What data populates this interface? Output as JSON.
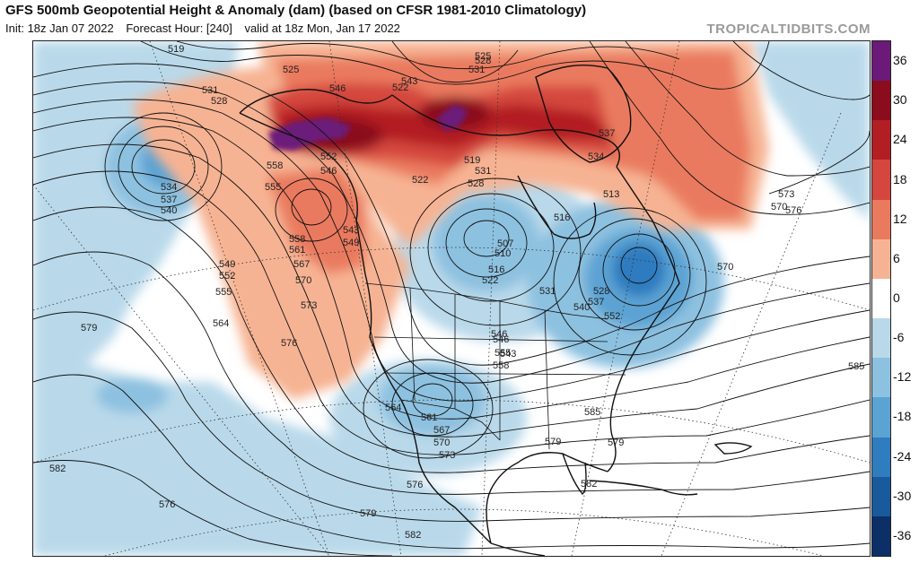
{
  "header": {
    "title": "GFS 500mb Geopotential Height & Anomaly (dam) (based on CFSR 1981-2010 Climatology)",
    "init": "Init: 18z Jan 07 2022",
    "forecast_hour": "Forecast Hour: [240]",
    "valid": "valid at 18z Mon, Jan 17 2022",
    "credit": "TROPICALTIDBITS.COM"
  },
  "colorbar": {
    "levels": [
      {
        "label": "36",
        "value": 36,
        "color": "#6c1a7a"
      },
      {
        "label": "30",
        "value": 30,
        "color": "#8b0c1c"
      },
      {
        "label": "24",
        "value": 24,
        "color": "#b21e24"
      },
      {
        "label": "18",
        "value": 18,
        "color": "#d4463e"
      },
      {
        "label": "12",
        "value": 12,
        "color": "#ea7a5e"
      },
      {
        "label": "6",
        "value": 6,
        "color": "#f6b393"
      },
      {
        "label": "0",
        "value": 0,
        "color": "#ffffff"
      },
      {
        "label": "-6",
        "value": -6,
        "color": "#b9d9ea"
      },
      {
        "label": "-12",
        "value": -12,
        "color": "#8dc1e0"
      },
      {
        "label": "-18",
        "value": -18,
        "color": "#5ba3d3"
      },
      {
        "label": "-24",
        "value": -24,
        "color": "#2f7cbf"
      },
      {
        "label": "-30",
        "value": -30,
        "color": "#195a9c"
      },
      {
        "label": "-36",
        "value": -36,
        "color": "#0c2f67"
      }
    ]
  },
  "contour_labels": [
    {
      "text": "519",
      "value": 519
    },
    {
      "text": "525",
      "value": 525
    },
    {
      "text": "528",
      "value": 528
    },
    {
      "text": "531",
      "value": 531
    },
    {
      "text": "546",
      "value": 546
    },
    {
      "text": "522",
      "value": 522
    },
    {
      "text": "543",
      "value": 543
    },
    {
      "text": "525",
      "value": 525
    },
    {
      "text": "531",
      "value": 531
    },
    {
      "text": "528",
      "value": 528
    },
    {
      "text": "537",
      "value": 537
    },
    {
      "text": "558",
      "value": 558
    },
    {
      "text": "552",
      "value": 552
    },
    {
      "text": "546",
      "value": 546
    },
    {
      "text": "555",
      "value": 555
    },
    {
      "text": "534",
      "value": 534
    },
    {
      "text": "537",
      "value": 537
    },
    {
      "text": "540",
      "value": 540
    },
    {
      "text": "543",
      "value": 543
    },
    {
      "text": "549",
      "value": 549
    },
    {
      "text": "519",
      "value": 519
    },
    {
      "text": "531",
      "value": 531
    },
    {
      "text": "528",
      "value": 528
    },
    {
      "text": "522",
      "value": 522
    },
    {
      "text": "534",
      "value": 534
    },
    {
      "text": "513",
      "value": 513
    },
    {
      "text": "516",
      "value": 516
    },
    {
      "text": "507",
      "value": 507
    },
    {
      "text": "510",
      "value": 510
    },
    {
      "text": "516",
      "value": 516
    },
    {
      "text": "522",
      "value": 522
    },
    {
      "text": "546",
      "value": 546
    },
    {
      "text": "549",
      "value": 549
    },
    {
      "text": "552",
      "value": 552
    },
    {
      "text": "555",
      "value": 555
    },
    {
      "text": "558",
      "value": 558
    },
    {
      "text": "561",
      "value": 561
    },
    {
      "text": "567",
      "value": 567
    },
    {
      "text": "570",
      "value": 570
    },
    {
      "text": "573",
      "value": 573
    },
    {
      "text": "564",
      "value": 564
    },
    {
      "text": "579",
      "value": 579
    },
    {
      "text": "576",
      "value": 576
    },
    {
      "text": "531",
      "value": 531
    },
    {
      "text": "528",
      "value": 528
    },
    {
      "text": "537",
      "value": 537
    },
    {
      "text": "540",
      "value": 540
    },
    {
      "text": "543",
      "value": 543
    },
    {
      "text": "552",
      "value": 552
    },
    {
      "text": "546",
      "value": 546
    },
    {
      "text": "555",
      "value": 555
    },
    {
      "text": "558",
      "value": 558
    },
    {
      "text": "570",
      "value": 570
    },
    {
      "text": "573",
      "value": 573
    },
    {
      "text": "576",
      "value": 576
    },
    {
      "text": "570",
      "value": 570
    },
    {
      "text": "585",
      "value": 585
    },
    {
      "text": "564",
      "value": 564
    },
    {
      "text": "561",
      "value": 561
    },
    {
      "text": "567",
      "value": 567
    },
    {
      "text": "570",
      "value": 570
    },
    {
      "text": "573",
      "value": 573
    },
    {
      "text": "576",
      "value": 576
    },
    {
      "text": "579",
      "value": 579
    },
    {
      "text": "582",
      "value": 582
    },
    {
      "text": "585",
      "value": 585
    },
    {
      "text": "579",
      "value": 579
    },
    {
      "text": "582",
      "value": 582
    },
    {
      "text": "579",
      "value": 579
    },
    {
      "text": "576",
      "value": 576
    },
    {
      "text": "582",
      "value": 582
    }
  ]
}
